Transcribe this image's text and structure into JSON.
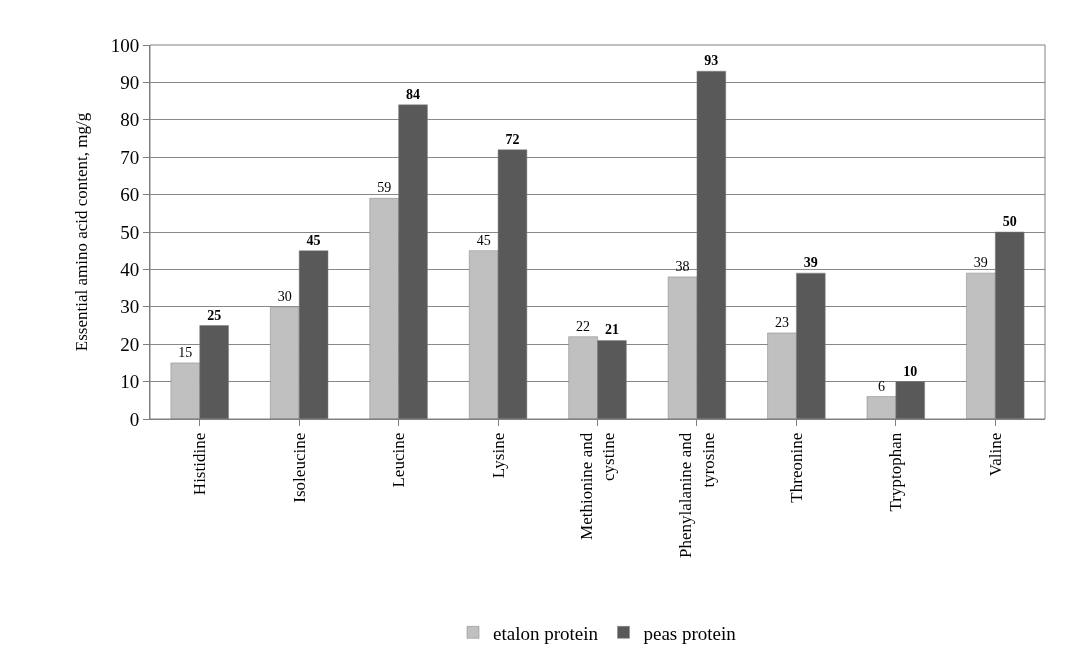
{
  "chart_data": {
    "type": "bar",
    "ylabel": "Essential amino acid content, mg/g",
    "categories": [
      "Histidine",
      "Isoleucine",
      "Leucine",
      "Lysine",
      "Methionine and cystine",
      "Phenylalanine and tyrosine",
      "Threonine",
      "Tryptophan",
      "Valine"
    ],
    "series": [
      {
        "name": "etalon protein",
        "color": "#c0c0c0",
        "values": [
          15,
          30,
          59,
          45,
          22,
          38,
          23,
          6,
          39
        ]
      },
      {
        "name": "peas protein",
        "color": "#595959",
        "values": [
          25,
          45,
          84,
          72,
          21,
          93,
          39,
          10,
          50
        ]
      }
    ],
    "ylim": [
      0,
      100
    ],
    "yticks": [
      0,
      10,
      20,
      30,
      40,
      50,
      60,
      70,
      80,
      90,
      100
    ],
    "grid": "y",
    "legend": "bottom",
    "data_labels": true
  }
}
